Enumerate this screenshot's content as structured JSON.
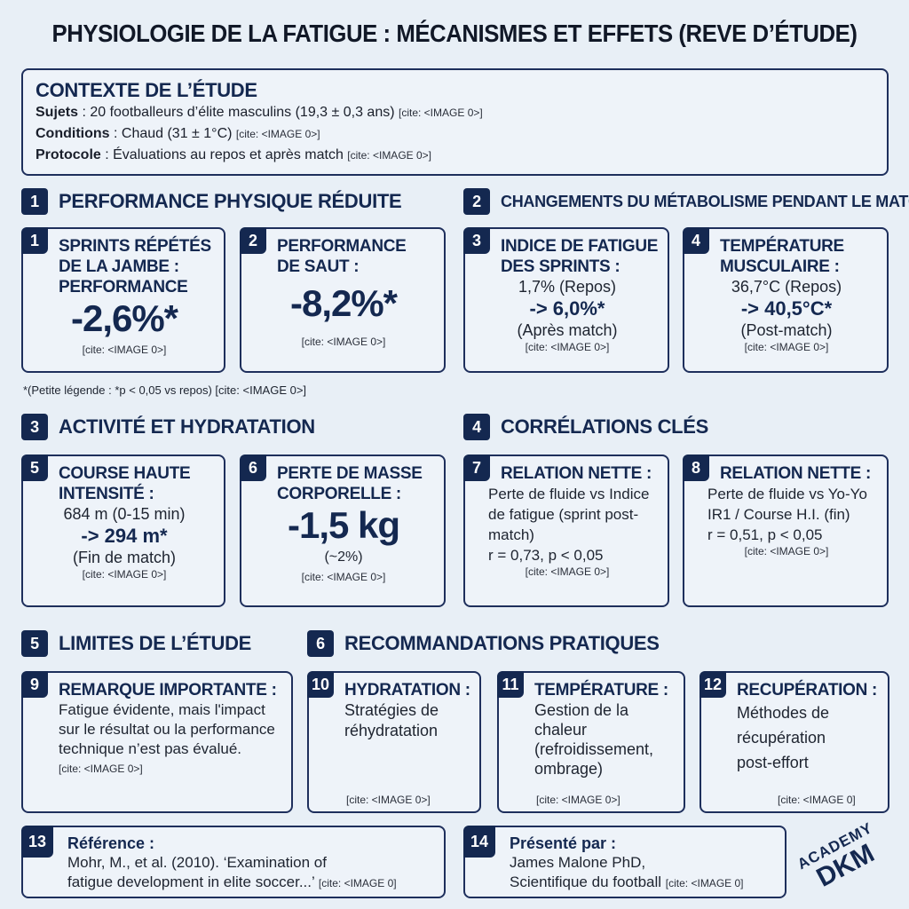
{
  "title": "PHYSIOLOGIE DE LA FATIGUE : MÉCANISMES ET EFFETS (REVE D’ÉTUDE)",
  "context": {
    "heading": "CONTEXTE DE L’ÉTUDE",
    "lines": [
      {
        "label": "Sujets",
        "text": " : 20 footballeurs d’élite masculins (19,3 ± 0,3 ans)",
        "cite": "[cite: <IMAGE 0>]"
      },
      {
        "label": "Conditions",
        "text": " : Chaud (31 ± 1°C)",
        "cite": "[cite: <IMAGE 0>]"
      },
      {
        "label": "Protocole",
        "text": " : Évaluations au repos et après match",
        "cite": "[cite: <IMAGE 0>]"
      }
    ]
  },
  "sections": [
    {
      "num": "1",
      "label": "PERFORMANCE PHYSIQUE RÉDUITE"
    },
    {
      "num": "2",
      "label": "CHANGEMENTS DU MÉTABOLISME PENDANT LE MATCH"
    },
    {
      "num": "3",
      "label": "ACTIVITÉ ET HYDRATATION"
    },
    {
      "num": "4",
      "label": "CORRÉLATIONS CLÉS"
    },
    {
      "num": "5",
      "label": "LIMITES DE L’ÉTUDE"
    },
    {
      "num": "6",
      "label": "RECOMMANDATIONS PRATIQUES"
    }
  ],
  "cards": {
    "c1": {
      "num": "1",
      "heading": "SPRINTS RÉPÉTÉS DE LA JAMBE : PERFORMANCE",
      "value": "-2,6%*",
      "cite": "[cite: <IMAGE 0>]"
    },
    "c2": {
      "num": "2",
      "heading": "PERFORMANCE DE SAUT :",
      "value": "-8,2%*",
      "cite": "[cite: <IMAGE 0>]"
    },
    "c3": {
      "num": "3",
      "heading": "INDICE DE FATIGUE DES SPRINTS :",
      "before": "1,7% (Repos)",
      "after": "-> 6,0%*",
      "after_note": "(Après match)",
      "cite": "[cite: <IMAGE 0>]"
    },
    "c4": {
      "num": "4",
      "heading": "TEMPÉRATURE MUSCULAIRE :",
      "before": "36,7°C (Repos)",
      "after": "-> 40,5°C*",
      "after_note": "(Post-match)",
      "cite": "[cite: <IMAGE 0>]"
    },
    "c5": {
      "num": "5",
      "heading": "COURSE HAUTE INTENSITÉ :",
      "before": "684 m (0-15 min)",
      "after": "-> 294 m*",
      "after_note": "(Fin de match)",
      "cite": "[cite: <IMAGE 0>]"
    },
    "c6": {
      "num": "6",
      "heading": "PERTE DE MASSE CORPORELLE :",
      "value": "-1,5 kg",
      "note": "(~2%)",
      "cite": "[cite: <IMAGE 0>]"
    },
    "c7": {
      "num": "7",
      "heading": "RELATION NETTE :",
      "body": "Perte de fluide vs Indice de fatigue (sprint post-match)",
      "stat": "r = 0,73, p < 0,05",
      "cite": "[cite: <IMAGE 0>]"
    },
    "c8": {
      "num": "8",
      "heading": "RELATION NETTE :",
      "body": "Perte de fluide vs Yo-Yo IR1 / Course H.I. (fin)",
      "stat": "r = 0,51, p < 0,05",
      "cite": "[cite: <IMAGE 0>]"
    },
    "c9": {
      "num": "9",
      "heading": "REMARQUE IMPORTANTE :",
      "body": "Fatigue évidente, mais l'impact sur le résultat ou la performance technique n’est pas évalué.",
      "cite": "[cite: <IMAGE 0>]"
    },
    "c10": {
      "num": "10",
      "heading": "HYDRATATION :",
      "body": "Stratégies de réhydratation",
      "cite": "[cite: <IMAGE 0>]"
    },
    "c11": {
      "num": "11",
      "heading": "TEMPÉRATURE :",
      "body": "Gestion de la chaleur (refroidissement, ombrage)",
      "cite": "[cite: <IMAGE 0>]"
    },
    "c12": {
      "num": "12",
      "heading": "RECUPÉRATION :",
      "body": "Méthodes de récupération post-effort",
      "cite": "[cite: <IMAGE 0]"
    },
    "c13": {
      "num": "13",
      "heading": "Référence :",
      "body1": "Mohr, M., et al. (2010). ‘Examination of",
      "body2": "fatigue development in elite soccer...’",
      "cite": "[cite: <IMAGE 0]"
    },
    "c14": {
      "num": "14",
      "heading": "Présenté par :",
      "body1": "James Malone PhD,",
      "body2": "Scientifique du football",
      "cite": "[cite: <IMAGE 0]"
    }
  },
  "legend": "*(Petite légende : *p < 0,05 vs repos) [cite: <IMAGE 0>]",
  "logo": {
    "line1": "ACADEMY",
    "line2": "DKM"
  }
}
